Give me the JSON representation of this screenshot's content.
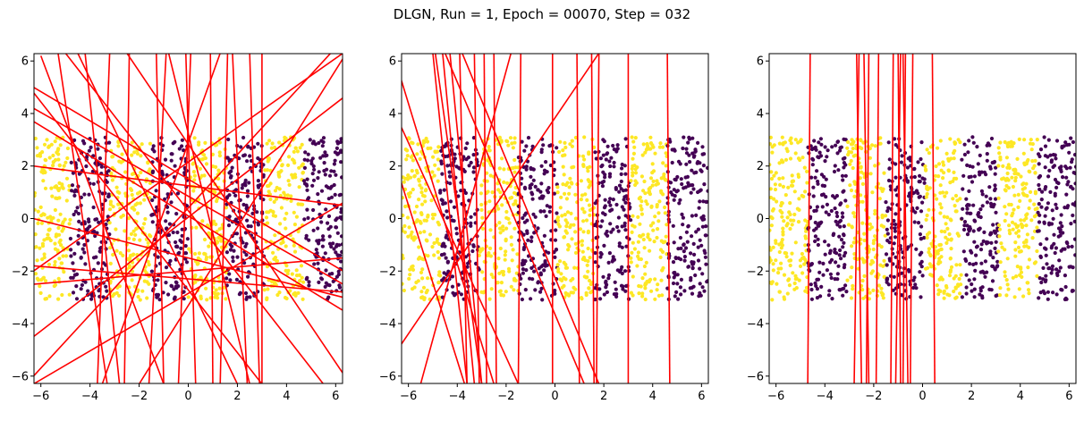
{
  "title": "DLGN, Run = 1, Epoch = 00070, Step = 032",
  "colors": {
    "class_yellow": "#fde725",
    "class_purple": "#440154",
    "lines": "#ff0000",
    "frame": "#000000"
  },
  "chart_data": [
    {
      "type": "scatter",
      "xlim": [
        -6.28,
        6.28
      ],
      "ylim": [
        -6.28,
        6.28
      ],
      "xticks": [
        -6,
        -4,
        -2,
        0,
        2,
        4,
        6
      ],
      "yticks": [
        -6,
        -4,
        -2,
        0,
        2,
        4,
        6
      ],
      "grid": false,
      "point_region": {
        "x": [
          -6.28,
          6.28
        ],
        "y": [
          -3.1,
          3.1
        ]
      },
      "class_bands": {
        "description_x_edges": [
          -6.28,
          -4.8,
          -3.2,
          -1.5,
          0,
          1.55,
          3.1,
          4.7,
          6.28
        ],
        "band_classes": [
          "yellow",
          "purple",
          "yellow",
          "purple",
          "yellow",
          "purple",
          "yellow",
          "purple"
        ]
      },
      "point_density_per_band": 170,
      "lines_xy": [
        [
          [
            -6.0,
            6.2
          ],
          [
            -1.0,
            -6.3
          ]
        ],
        [
          [
            -6.3,
            5.0
          ],
          [
            6.3,
            -2.0
          ]
        ],
        [
          [
            -6.3,
            4.8
          ],
          [
            3.0,
            -6.3
          ]
        ],
        [
          [
            -6.3,
            -6.0
          ],
          [
            5.8,
            6.3
          ]
        ],
        [
          [
            -6.3,
            -4.5
          ],
          [
            6.3,
            4.6
          ]
        ],
        [
          [
            -6.3,
            -1.8
          ],
          [
            6.3,
            -2.8
          ]
        ],
        [
          [
            -6.3,
            -2.5
          ],
          [
            6.3,
            -1.5
          ]
        ],
        [
          [
            -2.5,
            6.3
          ],
          [
            6.3,
            -5.9
          ]
        ],
        [
          [
            -6.3,
            -6.3
          ],
          [
            6.3,
            0.6
          ]
        ],
        [
          [
            -6.3,
            0.0
          ],
          [
            6.3,
            -3.0
          ]
        ],
        [
          [
            -4.5,
            6.3
          ],
          [
            2.0,
            -6.3
          ]
        ],
        [
          [
            -3.5,
            -6.3
          ],
          [
            1.3,
            6.3
          ]
        ],
        [
          [
            -5.0,
            6.3
          ],
          [
            5.5,
            -6.3
          ]
        ],
        [
          [
            -6.3,
            2.0
          ],
          [
            6.3,
            0.5
          ]
        ],
        [
          [
            -6.3,
            4.2
          ],
          [
            6.3,
            -2.5
          ]
        ],
        [
          [
            -2.0,
            -6.3
          ],
          [
            6.3,
            6.1
          ]
        ],
        [
          [
            -3.7,
            -6.3
          ],
          [
            -3.2,
            6.3
          ]
        ],
        [
          [
            -2.6,
            -6.3
          ],
          [
            -2.4,
            6.3
          ]
        ],
        [
          [
            -1.6,
            -6.3
          ],
          [
            -0.9,
            6.3
          ]
        ],
        [
          [
            -1.0,
            -6.3
          ],
          [
            -1.3,
            6.3
          ]
        ],
        [
          [
            -0.4,
            -6.3
          ],
          [
            0.1,
            6.3
          ]
        ],
        [
          [
            0.3,
            -6.3
          ],
          [
            -0.1,
            6.3
          ]
        ],
        [
          [
            1.0,
            -6.3
          ],
          [
            0.9,
            6.3
          ]
        ],
        [
          [
            1.3,
            -6.3
          ],
          [
            1.6,
            6.3
          ]
        ],
        [
          [
            2.4,
            -6.3
          ],
          [
            1.8,
            6.3
          ]
        ],
        [
          [
            2.9,
            -6.3
          ],
          [
            2.5,
            6.3
          ]
        ],
        [
          [
            3.0,
            -6.3
          ],
          [
            3.0,
            6.3
          ]
        ],
        [
          [
            -5.3,
            6.3
          ],
          [
            -3.3,
            -6.3
          ]
        ],
        [
          [
            -4.2,
            6.3
          ],
          [
            -2.8,
            -6.3
          ]
        ],
        [
          [
            -0.8,
            6.3
          ],
          [
            2.5,
            -6.3
          ]
        ],
        [
          [
            -6.3,
            -2.0
          ],
          [
            6.3,
            6.3
          ]
        ],
        [
          [
            -6.3,
            3.7
          ],
          [
            6.3,
            -3.5
          ]
        ]
      ]
    },
    {
      "type": "scatter",
      "xlim": [
        -6.28,
        6.28
      ],
      "ylim": [
        -6.28,
        6.28
      ],
      "xticks": [
        -6,
        -4,
        -2,
        0,
        2,
        4,
        6
      ],
      "yticks": [
        -6,
        -4,
        -2,
        0,
        2,
        4,
        6
      ],
      "grid": false,
      "point_region": {
        "x": [
          -6.28,
          6.28
        ],
        "y": [
          -3.1,
          3.1
        ]
      },
      "class_bands": {
        "description_x_edges": [
          -6.28,
          -4.7,
          -3.1,
          -1.5,
          0.1,
          1.6,
          3.1,
          4.6,
          6.28
        ],
        "band_classes": [
          "yellow",
          "purple",
          "yellow",
          "purple",
          "yellow",
          "purple",
          "yellow",
          "purple"
        ]
      },
      "point_density_per_band": 170,
      "lines_xy": [
        [
          [
            -5.0,
            6.3
          ],
          [
            -3.6,
            -6.3
          ]
        ],
        [
          [
            -4.9,
            6.3
          ],
          [
            -3.0,
            -6.3
          ]
        ],
        [
          [
            -4.6,
            6.3
          ],
          [
            -3.3,
            -6.3
          ]
        ],
        [
          [
            -4.3,
            6.3
          ],
          [
            -3.0,
            -6.3
          ]
        ],
        [
          [
            -3.9,
            6.3
          ],
          [
            -3.6,
            -6.3
          ]
        ],
        [
          [
            -3.3,
            6.3
          ],
          [
            -3.1,
            -6.3
          ]
        ],
        [
          [
            -2.9,
            6.3
          ],
          [
            -2.8,
            -6.3
          ]
        ],
        [
          [
            -2.5,
            6.3
          ],
          [
            -2.4,
            -6.3
          ]
        ],
        [
          [
            -1.4,
            6.3
          ],
          [
            -1.5,
            -6.3
          ]
        ],
        [
          [
            -0.1,
            6.3
          ],
          [
            -0.1,
            -6.3
          ]
        ],
        [
          [
            0.9,
            6.3
          ],
          [
            1.0,
            -6.3
          ]
        ],
        [
          [
            1.5,
            6.3
          ],
          [
            1.6,
            -6.3
          ]
        ],
        [
          [
            1.8,
            6.3
          ],
          [
            1.7,
            -6.3
          ]
        ],
        [
          [
            3.0,
            6.3
          ],
          [
            3.0,
            -6.3
          ]
        ],
        [
          [
            4.6,
            6.3
          ],
          [
            4.7,
            -6.3
          ]
        ],
        [
          [
            -6.3,
            5.3
          ],
          [
            -2.5,
            -6.3
          ]
        ],
        [
          [
            -6.3,
            3.5
          ],
          [
            -1.5,
            -6.3
          ]
        ],
        [
          [
            -6.3,
            1.4
          ],
          [
            -3.7,
            -6.3
          ]
        ],
        [
          [
            -6.3,
            -4.8
          ],
          [
            1.8,
            6.3
          ]
        ],
        [
          [
            -5.5,
            -6.3
          ],
          [
            -1.8,
            6.3
          ]
        ],
        [
          [
            -4.5,
            6.3
          ],
          [
            1.2,
            -6.3
          ]
        ],
        [
          [
            -3.8,
            6.3
          ],
          [
            1.8,
            -6.3
          ]
        ]
      ]
    },
    {
      "type": "scatter",
      "xlim": [
        -6.28,
        6.28
      ],
      "ylim": [
        -6.28,
        6.28
      ],
      "xticks": [
        -6,
        -4,
        -2,
        0,
        2,
        4,
        6
      ],
      "yticks": [
        -6,
        -4,
        -2,
        0,
        2,
        4,
        6
      ],
      "grid": false,
      "point_region": {
        "x": [
          -6.28,
          6.28
        ],
        "y": [
          -3.1,
          3.1
        ]
      },
      "class_bands": {
        "description_x_edges": [
          -6.28,
          -4.7,
          -3.1,
          -1.5,
          0.1,
          1.6,
          3.1,
          4.7,
          6.28
        ],
        "band_classes": [
          "yellow",
          "purple",
          "yellow",
          "purple",
          "yellow",
          "purple",
          "yellow",
          "purple"
        ]
      },
      "point_density_per_band": 170,
      "lines_xy": [
        [
          [
            -4.7,
            -6.3
          ],
          [
            -4.6,
            6.3
          ]
        ],
        [
          [
            -2.8,
            -6.3
          ],
          [
            -2.6,
            6.3
          ]
        ],
        [
          [
            -2.5,
            -6.3
          ],
          [
            -2.7,
            6.3
          ]
        ],
        [
          [
            -2.3,
            -6.3
          ],
          [
            -2.2,
            6.3
          ]
        ],
        [
          [
            -2.2,
            -6.3
          ],
          [
            -2.4,
            6.3
          ]
        ],
        [
          [
            -1.9,
            -6.3
          ],
          [
            -1.8,
            6.3
          ]
        ],
        [
          [
            -1.3,
            -6.3
          ],
          [
            -1.2,
            6.3
          ]
        ],
        [
          [
            -0.9,
            -6.3
          ],
          [
            -1.0,
            6.3
          ]
        ],
        [
          [
            -0.8,
            -6.3
          ],
          [
            -0.7,
            6.3
          ]
        ],
        [
          [
            -0.6,
            -6.3
          ],
          [
            -0.8,
            6.3
          ]
        ],
        [
          [
            -0.5,
            -6.3
          ],
          [
            -0.4,
            6.3
          ]
        ],
        [
          [
            0.5,
            -6.3
          ],
          [
            0.4,
            6.3
          ]
        ],
        [
          [
            -1.1,
            -6.3
          ],
          [
            -0.9,
            6.3
          ]
        ]
      ]
    }
  ]
}
